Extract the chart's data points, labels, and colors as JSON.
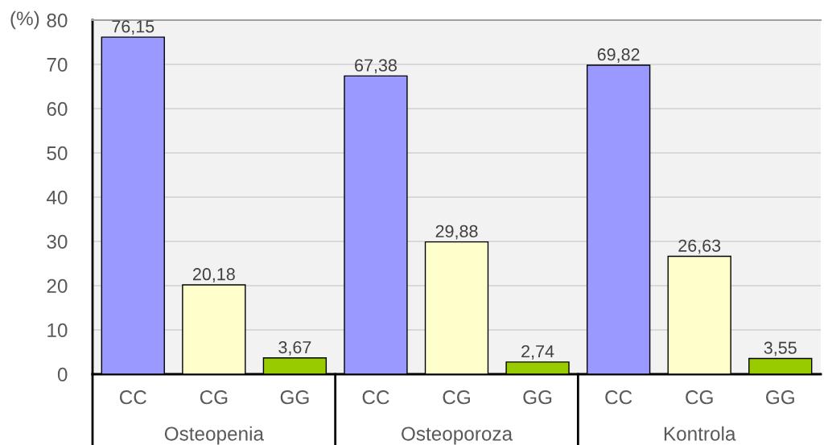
{
  "chart_data": {
    "type": "bar",
    "ylabel": "(%)",
    "categories": [
      "Osteopenia",
      "Osteoporoza",
      "Kontrola"
    ],
    "series": [
      {
        "name": "CC",
        "color": "#9999ff",
        "values": [
          76.15,
          67.38,
          69.82
        ],
        "value_labels": [
          "76,15",
          "67,38",
          "69,82"
        ]
      },
      {
        "name": "CG",
        "color": "#ffffcc",
        "values": [
          20.18,
          29.88,
          26.63
        ],
        "value_labels": [
          "20,18",
          "29,88",
          "26,63"
        ]
      },
      {
        "name": "GG",
        "color": "#99cc00",
        "values": [
          3.67,
          2.74,
          3.55
        ],
        "value_labels": [
          "3,67",
          "2,74",
          "3,55"
        ]
      }
    ],
    "ylim": [
      0,
      80
    ],
    "yticks": [
      0,
      10,
      20,
      30,
      40,
      50,
      60,
      70,
      80
    ],
    "grid": "y"
  }
}
